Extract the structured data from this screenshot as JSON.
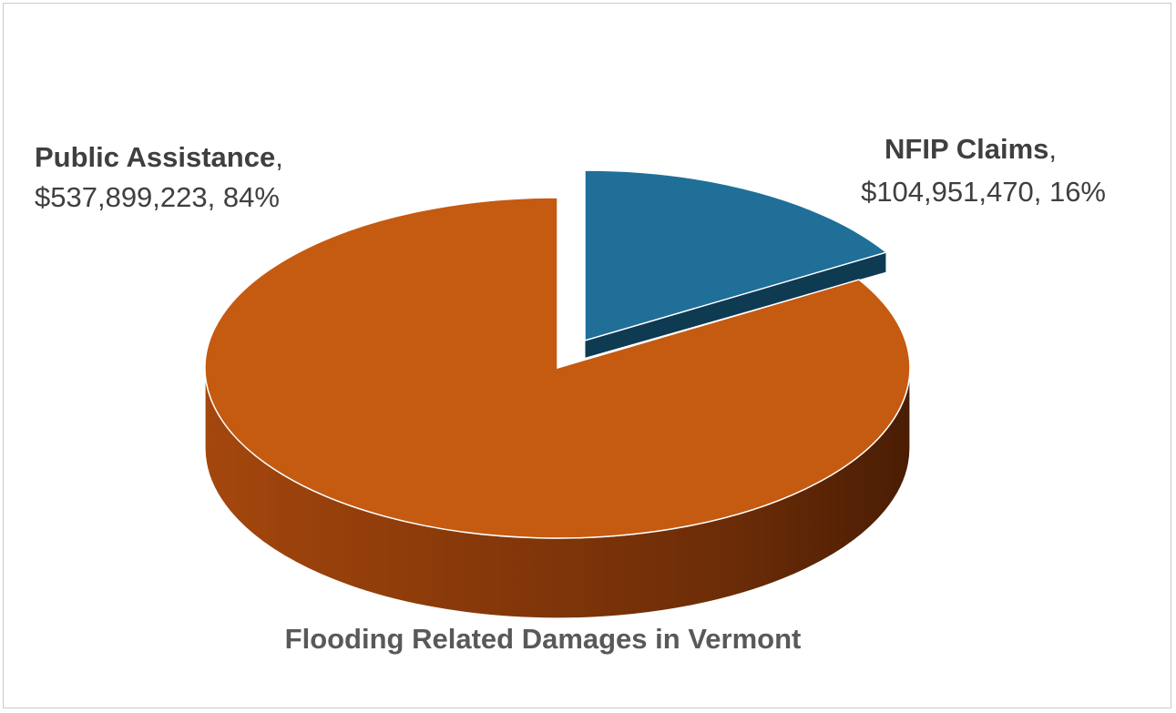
{
  "chart_data": {
    "type": "pie",
    "title": "Flooding Related Damages in Vermont",
    "slices": [
      {
        "name": "Public Assistance",
        "value": 537899223,
        "value_label": "$537,899,223",
        "percent": 84,
        "percent_label": "84%",
        "color": "#c55a11",
        "exploded": false
      },
      {
        "name": "NFIP Claims",
        "value": 104951470,
        "value_label": "$104,951,470",
        "percent": 16,
        "percent_label": "16%",
        "color": "#1f6f99",
        "exploded": true
      }
    ],
    "style": "3d",
    "legend": "none",
    "data_labels": "name, value, percent"
  }
}
